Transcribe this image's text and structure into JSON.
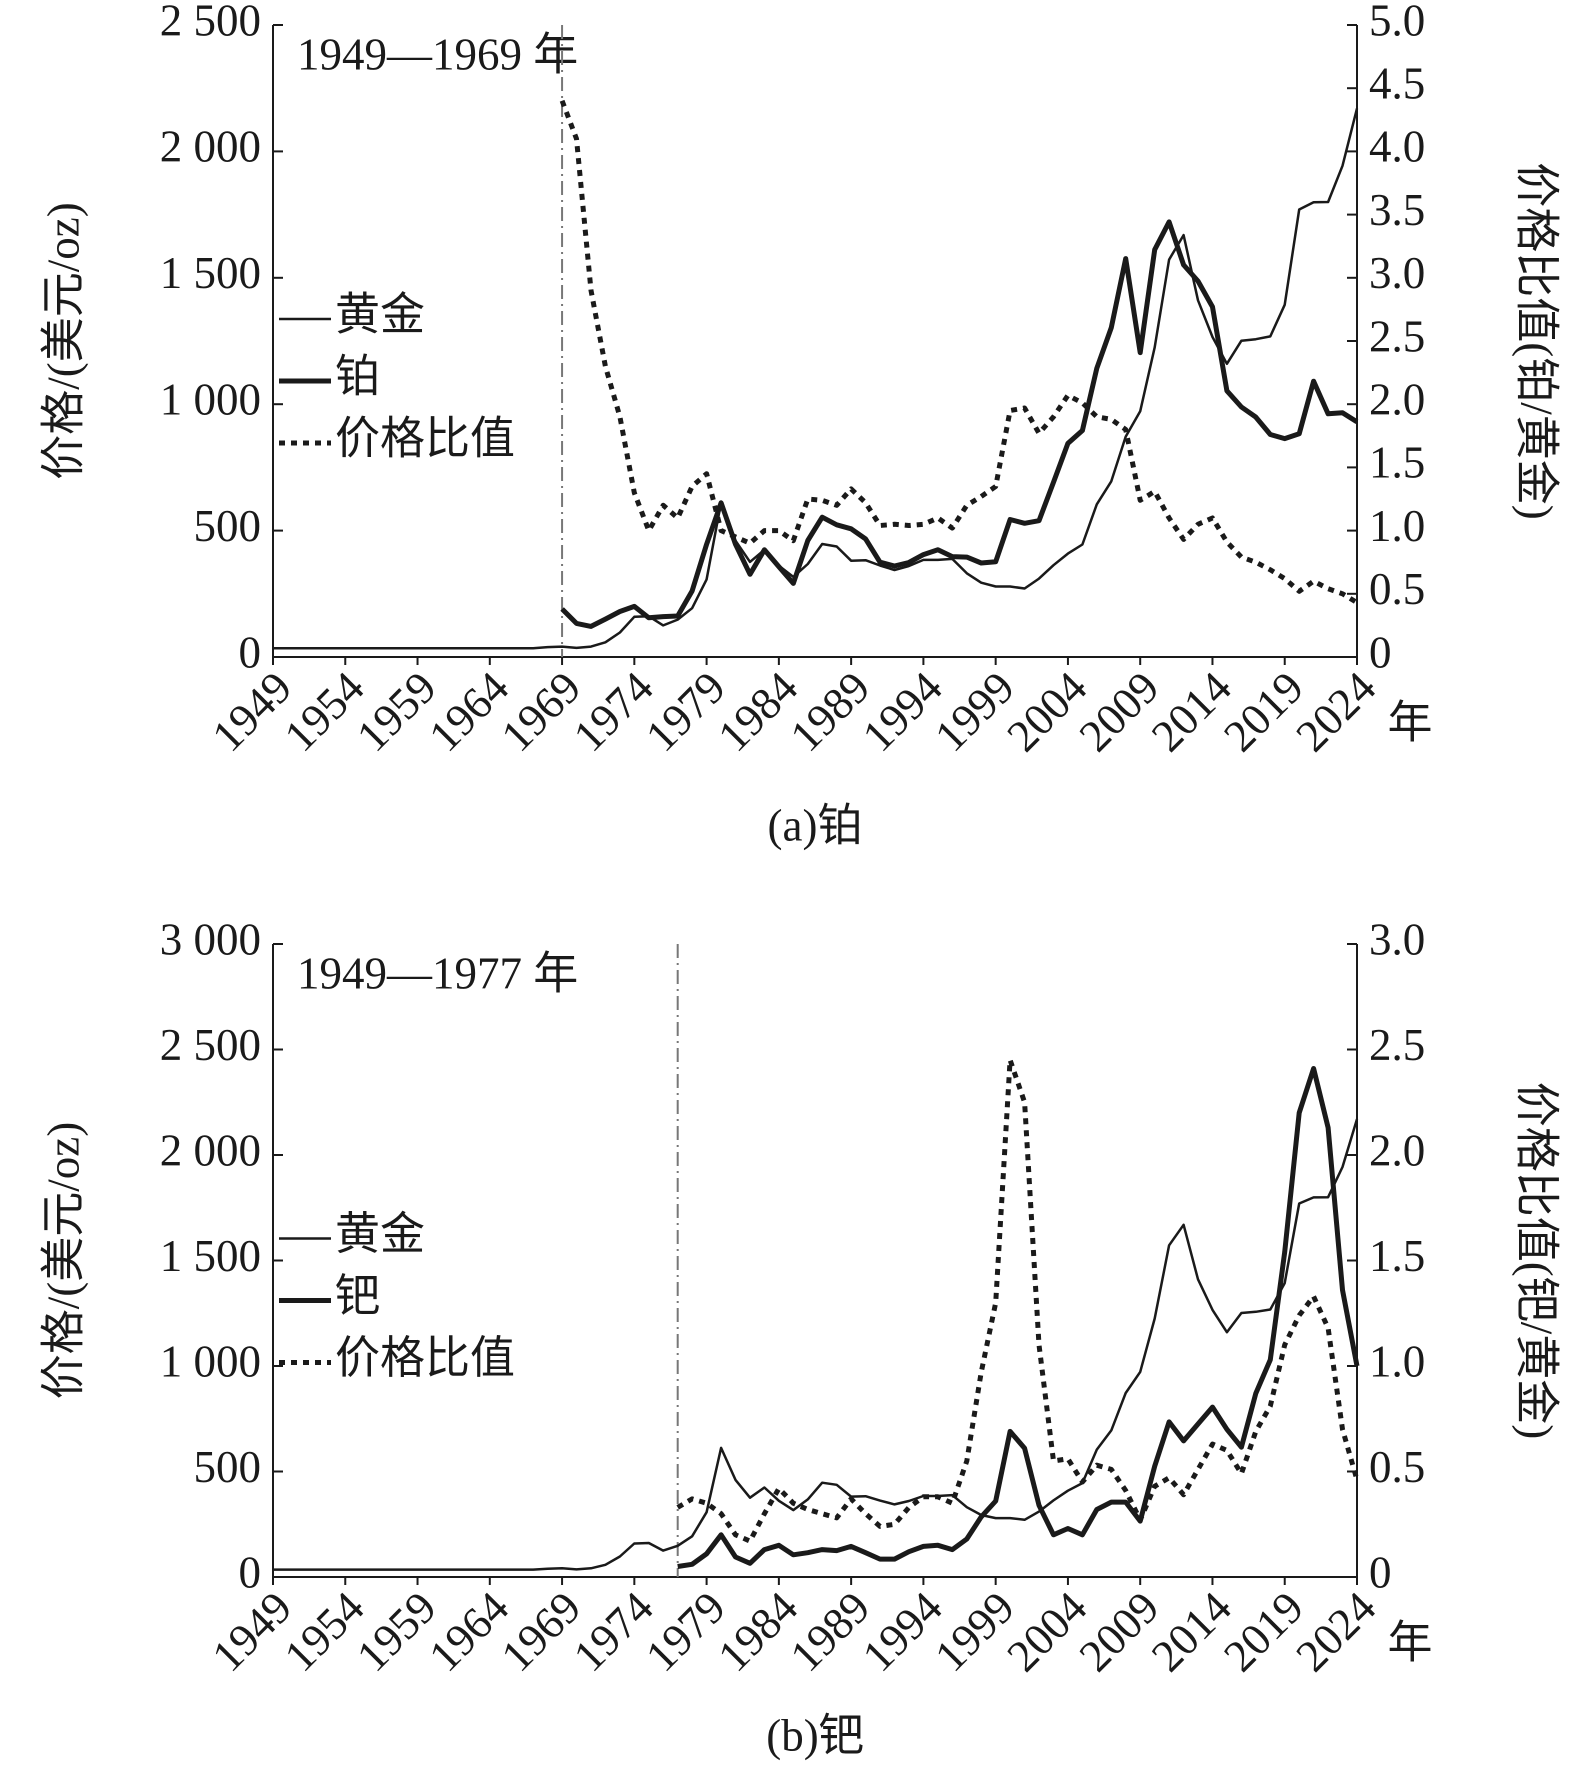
{
  "chart_data": [
    {
      "type": "line",
      "caption": "(a)铂",
      "annotation": "1949—1969 年",
      "annotation_x": 1969,
      "ylabel": "价格/(美元/oz)",
      "y2label": "价格比值(铂/黄金)",
      "xlabel": "年",
      "legend": "center left",
      "xlim": [
        1949,
        2024
      ],
      "xticks": [
        1949,
        1954,
        1959,
        1964,
        1969,
        1974,
        1979,
        1984,
        1989,
        1994,
        1999,
        2004,
        2009,
        2014,
        2019,
        2024
      ],
      "ylim": [
        0,
        2500
      ],
      "yticks": [
        0,
        500,
        {
          "value": 1000,
          "label": "1 000"
        },
        {
          "value": 1500,
          "label": "1 500"
        },
        {
          "value": 2000,
          "label": "2 000"
        },
        {
          "value": 2500,
          "label": "2 500"
        }
      ],
      "y2lim": [
        0,
        5
      ],
      "y2ticks": [
        0,
        0.5,
        {
          "value": 1,
          "label": "1.0"
        },
        1.5,
        {
          "value": 2,
          "label": "2.0"
        },
        2.5,
        {
          "value": 3,
          "label": "3.0"
        },
        3.5,
        {
          "value": 4,
          "label": "4.0"
        },
        4.5,
        {
          "value": 5,
          "label": "5.0"
        }
      ],
      "x": [
        1949,
        1950,
        1951,
        1952,
        1953,
        1954,
        1955,
        1956,
        1957,
        1958,
        1959,
        1960,
        1961,
        1962,
        1963,
        1964,
        1965,
        1966,
        1967,
        1968,
        1969,
        1970,
        1971,
        1972,
        1973,
        1974,
        1975,
        1976,
        1977,
        1978,
        1979,
        1980,
        1981,
        1982,
        1983,
        1984,
        1985,
        1986,
        1987,
        1988,
        1989,
        1990,
        1991,
        1992,
        1993,
        1994,
        1995,
        1996,
        1997,
        1998,
        1999,
        2000,
        2001,
        2002,
        2003,
        2004,
        2005,
        2006,
        2007,
        2008,
        2009,
        2010,
        2011,
        2012,
        2013,
        2014,
        2015,
        2016,
        2017,
        2018,
        2019,
        2020,
        2021,
        2022,
        2023,
        2024
      ],
      "series": [
        {
          "name": "黄金",
          "color": "#1a1a1a",
          "style": "solid",
          "width": 2.5,
          "values": [
            35,
            35,
            35,
            35,
            35,
            35,
            35,
            35,
            35,
            35,
            35,
            35,
            35,
            35,
            35,
            35,
            35,
            35,
            35,
            39,
            41,
            36,
            41,
            58,
            97,
            159,
            161,
            125,
            148,
            193,
            307,
            612,
            460,
            376,
            424,
            361,
            317,
            368,
            447,
            437,
            381,
            383,
            362,
            344,
            360,
            384,
            384,
            388,
            331,
            294,
            279,
            279,
            271,
            310,
            363,
            409,
            445,
            604,
            695,
            872,
            972,
            1225,
            1572,
            1669,
            1411,
            1266,
            1160,
            1251,
            1257,
            1268,
            1393,
            1770,
            1799,
            1800,
            1943,
            2170
          ]
        },
        {
          "name": "铂",
          "color": "#1a1a1a",
          "style": "solid",
          "width": 5,
          "values": [
            null,
            null,
            null,
            null,
            null,
            null,
            null,
            null,
            null,
            null,
            null,
            null,
            null,
            null,
            null,
            null,
            null,
            null,
            null,
            null,
            190,
            133,
            121,
            150,
            180,
            200,
            155,
            160,
            162,
            261,
            446,
            610,
            446,
            327,
            424,
            357,
            291,
            461,
            553,
            523,
            507,
            467,
            375,
            360,
            374,
            405,
            424,
            397,
            395,
            372,
            377,
            544,
            529,
            539,
            691,
            845,
            896,
            1142,
            1303,
            1576,
            1204,
            1611,
            1721,
            1551,
            1487,
            1385,
            1053,
            989,
            949,
            880,
            864,
            883,
            1091,
            962,
            966,
            930
          ]
        },
        {
          "name": "价格比值",
          "color": "#1a1a1a",
          "style": "dotted",
          "width": 5,
          "axis": "y2",
          "values": [
            null,
            null,
            null,
            null,
            null,
            null,
            null,
            null,
            null,
            null,
            null,
            null,
            null,
            null,
            null,
            null,
            null,
            null,
            null,
            null,
            4.4,
            4.1,
            2.9,
            2.3,
            1.9,
            1.3,
            1.0,
            1.2,
            1.1,
            1.35,
            1.45,
            1.0,
            0.95,
            0.9,
            1.0,
            1.0,
            0.92,
            1.25,
            1.24,
            1.2,
            1.33,
            1.22,
            1.04,
            1.05,
            1.04,
            1.05,
            1.1,
            1.02,
            1.2,
            1.27,
            1.35,
            1.95,
            1.97,
            1.77,
            1.9,
            2.07,
            2.01,
            1.9,
            1.88,
            1.8,
            1.24,
            1.31,
            1.1,
            0.93,
            1.05,
            1.1,
            0.91,
            0.79,
            0.75,
            0.69,
            0.62,
            0.52,
            0.6,
            0.54,
            0.5,
            0.43
          ]
        }
      ]
    },
    {
      "type": "line",
      "caption": "(b)钯",
      "annotation": "1949—1977 年",
      "annotation_x": 1977,
      "ylabel": "价格/(美元/oz)",
      "y2label": "价格比值(钯/黄金)",
      "xlabel": "年",
      "legend": "center left",
      "xlim": [
        1949,
        2024
      ],
      "xticks": [
        1949,
        1954,
        1959,
        1964,
        1969,
        1974,
        1979,
        1984,
        1989,
        1994,
        1999,
        2004,
        2009,
        2014,
        2019,
        2024
      ],
      "ylim": [
        0,
        3000
      ],
      "yticks": [
        0,
        500,
        {
          "value": 1000,
          "label": "1 000"
        },
        {
          "value": 1500,
          "label": "1 500"
        },
        {
          "value": 2000,
          "label": "2 000"
        },
        {
          "value": 2500,
          "label": "2 500"
        },
        {
          "value": 3000,
          "label": "3 000"
        }
      ],
      "y2lim": [
        0,
        3
      ],
      "y2ticks": [
        0,
        0.5,
        {
          "value": 1,
          "label": "1.0"
        },
        1.5,
        {
          "value": 2,
          "label": "2.0"
        },
        2.5,
        {
          "value": 3,
          "label": "3.0"
        }
      ],
      "x": [
        1949,
        1950,
        1951,
        1952,
        1953,
        1954,
        1955,
        1956,
        1957,
        1958,
        1959,
        1960,
        1961,
        1962,
        1963,
        1964,
        1965,
        1966,
        1967,
        1968,
        1969,
        1970,
        1971,
        1972,
        1973,
        1974,
        1975,
        1976,
        1977,
        1978,
        1979,
        1980,
        1981,
        1982,
        1983,
        1984,
        1985,
        1986,
        1987,
        1988,
        1989,
        1990,
        1991,
        1992,
        1993,
        1994,
        1995,
        1996,
        1997,
        1998,
        1999,
        2000,
        2001,
        2002,
        2003,
        2004,
        2005,
        2006,
        2007,
        2008,
        2009,
        2010,
        2011,
        2012,
        2013,
        2014,
        2015,
        2016,
        2017,
        2018,
        2019,
        2020,
        2021,
        2022,
        2023,
        2024
      ],
      "series": [
        {
          "name": "黄金",
          "color": "#1a1a1a",
          "style": "solid",
          "width": 2.5,
          "values": [
            35,
            35,
            35,
            35,
            35,
            35,
            35,
            35,
            35,
            35,
            35,
            35,
            35,
            35,
            35,
            35,
            35,
            35,
            35,
            39,
            41,
            36,
            41,
            58,
            97,
            159,
            161,
            125,
            148,
            193,
            307,
            612,
            460,
            376,
            424,
            361,
            317,
            368,
            447,
            437,
            381,
            383,
            362,
            344,
            360,
            384,
            384,
            388,
            331,
            294,
            279,
            279,
            271,
            310,
            363,
            409,
            445,
            604,
            695,
            872,
            972,
            1225,
            1572,
            1669,
            1411,
            1266,
            1160,
            1251,
            1257,
            1268,
            1393,
            1770,
            1799,
            1800,
            1943,
            2170
          ]
        },
        {
          "name": "钯",
          "color": "#1a1a1a",
          "style": "solid",
          "width": 5,
          "values": [
            null,
            null,
            null,
            null,
            null,
            null,
            null,
            null,
            null,
            null,
            null,
            null,
            null,
            null,
            null,
            null,
            null,
            null,
            null,
            null,
            null,
            null,
            null,
            null,
            null,
            null,
            null,
            null,
            50,
            60,
            110,
            200,
            95,
            65,
            130,
            150,
            105,
            115,
            130,
            125,
            145,
            115,
            85,
            85,
            120,
            145,
            150,
            130,
            180,
            285,
            360,
            690,
            610,
            340,
            200,
            230,
            200,
            320,
            355,
            355,
            265,
            525,
            735,
            645,
            725,
            805,
            700,
            615,
            870,
            1030,
            1540,
            2200,
            2410,
            2130,
            1360,
            1000
          ]
        },
        {
          "name": "价格比值",
          "color": "#1a1a1a",
          "style": "dotted",
          "width": 5,
          "axis": "y2",
          "values": [
            null,
            null,
            null,
            null,
            null,
            null,
            null,
            null,
            null,
            null,
            null,
            null,
            null,
            null,
            null,
            null,
            null,
            null,
            null,
            null,
            null,
            null,
            null,
            null,
            null,
            null,
            null,
            null,
            0.33,
            0.37,
            0.35,
            0.3,
            0.2,
            0.17,
            0.3,
            0.42,
            0.35,
            0.32,
            0.3,
            0.28,
            0.37,
            0.3,
            0.24,
            0.25,
            0.33,
            0.38,
            0.38,
            0.35,
            0.55,
            0.97,
            1.3,
            2.45,
            2.25,
            1.1,
            0.55,
            0.56,
            0.45,
            0.53,
            0.51,
            0.41,
            0.27,
            0.43,
            0.47,
            0.39,
            0.51,
            0.63,
            0.6,
            0.49,
            0.69,
            0.81,
            1.1,
            1.24,
            1.33,
            1.18,
            0.7,
            0.46
          ]
        }
      ]
    }
  ]
}
